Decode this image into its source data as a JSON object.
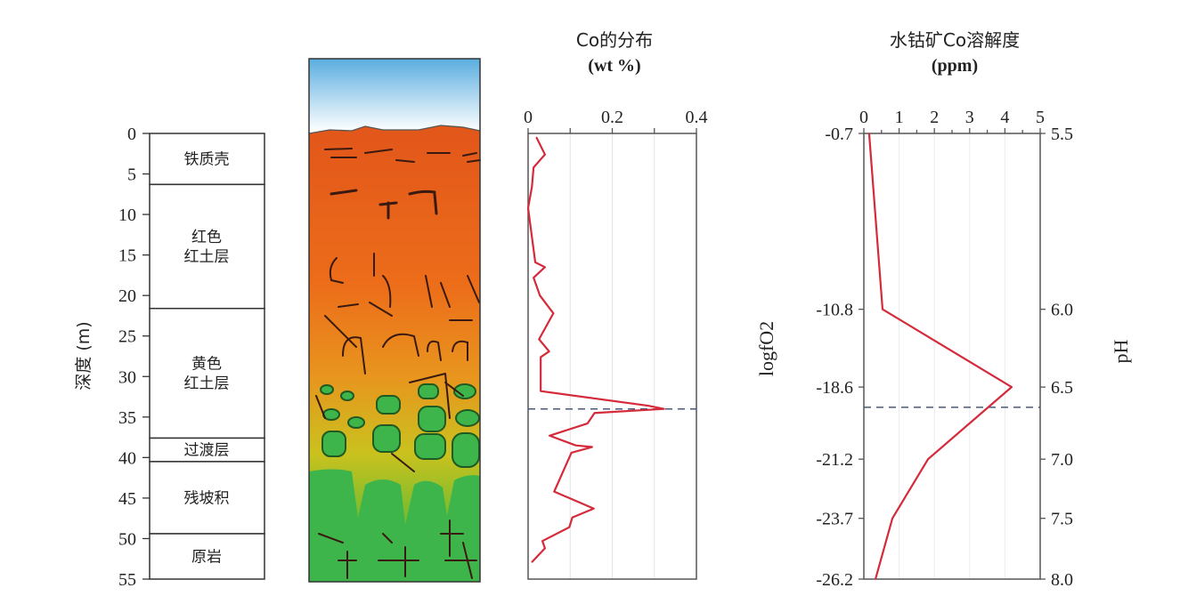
{
  "strat_column": {
    "depth_axis_label": "深度 (m)",
    "depth_ticks": [
      0,
      5,
      10,
      15,
      20,
      25,
      30,
      35,
      40,
      45,
      50,
      55
    ],
    "layers": [
      {
        "label": [
          "铁质壳"
        ],
        "top": 0,
        "bottom": 6.3
      },
      {
        "label": [
          "红色",
          "红土层"
        ],
        "top": 6.3,
        "bottom": 21.6
      },
      {
        "label": [
          "黄色",
          "红土层"
        ],
        "top": 21.6,
        "bottom": 37.6
      },
      {
        "label": [
          "过渡层"
        ],
        "top": 37.6,
        "bottom": 40.5
      },
      {
        "label": [
          "残坡积"
        ],
        "top": 40.5,
        "bottom": 49.4
      },
      {
        "label": [
          "原岩"
        ],
        "top": 49.4,
        "bottom": 55
      }
    ]
  },
  "profile_colors": {
    "sky": "#5aaee0",
    "top": "#e2561a",
    "middle": "#f08a1c",
    "lower": "#c9c21e",
    "bottom": "#3db54a"
  },
  "chart_data": [
    {
      "type": "line",
      "title": "Co的分布",
      "subtitle": "(wt %)",
      "xlim": [
        0,
        0.4
      ],
      "x_ticks": [
        "0",
        "0.2",
        "0.4"
      ],
      "ylim": [
        0,
        55
      ],
      "y_reversed": true,
      "grid": "vertical",
      "line_color": "#d42a3a",
      "reference_depth": 34.0,
      "points": [
        [
          0.02,
          0.5
        ],
        [
          0.04,
          2.6
        ],
        [
          0.013,
          4.2
        ],
        [
          0.009,
          6.6
        ],
        [
          0.0,
          9.2
        ],
        [
          0.017,
          15.9
        ],
        [
          0.04,
          16.5
        ],
        [
          0.013,
          17.8
        ],
        [
          0.028,
          20.0
        ],
        [
          0.06,
          22.2
        ],
        [
          0.026,
          25.4
        ],
        [
          0.05,
          26.9
        ],
        [
          0.03,
          27.6
        ],
        [
          0.03,
          31.8
        ],
        [
          0.285,
          33.6
        ],
        [
          0.323,
          34.0
        ],
        [
          0.158,
          34.5
        ],
        [
          0.141,
          35.8
        ],
        [
          0.051,
          37.3
        ],
        [
          0.113,
          38.5
        ],
        [
          0.152,
          38.7
        ],
        [
          0.103,
          39.4
        ],
        [
          0.062,
          44.2
        ],
        [
          0.156,
          46.3
        ],
        [
          0.105,
          47.4
        ],
        [
          0.098,
          48.6
        ],
        [
          0.034,
          50.3
        ],
        [
          0.04,
          51.2
        ],
        [
          0.009,
          52.9
        ]
      ]
    },
    {
      "type": "line",
      "title": "水钴矿Co溶解度",
      "subtitle": "(ppm)",
      "xlim": [
        0,
        5
      ],
      "x_ticks": [
        "0",
        "1",
        "2",
        "3",
        "4",
        "5"
      ],
      "ylim": [
        0,
        55
      ],
      "y_reversed": true,
      "grid": "vertical",
      "line_color": "#d42a3a",
      "reference_depth": 33.8,
      "left_axis_label": "logfO2",
      "right_axis_label": "pH",
      "levels": [
        {
          "depth": 0,
          "logfO2": "-0.7",
          "pH": "5.5",
          "solubility": 0.15
        },
        {
          "depth": 21.7,
          "logfO2": "-10.8",
          "pH": "6.0",
          "solubility": 0.53
        },
        {
          "depth": 31.3,
          "logfO2": "-18.6",
          "pH": "6.5",
          "solubility": 4.19
        },
        {
          "depth": 40.2,
          "logfO2": "-21.2",
          "pH": "7.0",
          "solubility": 1.82
        },
        {
          "depth": 47.5,
          "logfO2": "-23.7",
          "pH": "7.5",
          "solubility": 0.81
        },
        {
          "depth": 55,
          "logfO2": "-26.2",
          "pH": "8.0",
          "solubility": 0.33
        }
      ]
    }
  ]
}
